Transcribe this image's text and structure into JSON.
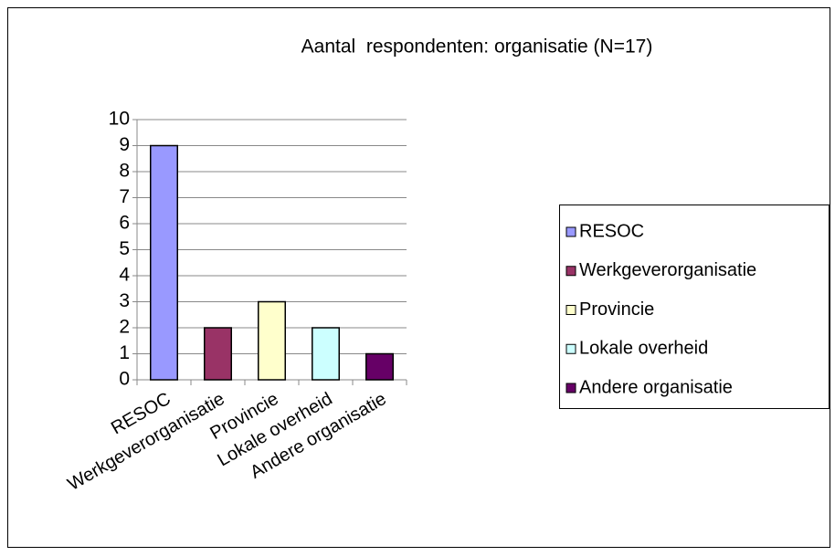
{
  "chart_data": {
    "type": "bar",
    "title": "Aantal  respondenten: organisatie (N=17)",
    "categories": [
      "RESOC",
      "Werkgeverorganisatie",
      "Provincie",
      "Lokale overheid",
      "Andere organisatie"
    ],
    "values": [
      9,
      2,
      3,
      2,
      1
    ],
    "colors": [
      "#9999ff",
      "#993366",
      "#ffffcc",
      "#ccffff",
      "#660066"
    ],
    "ylim": [
      0,
      10
    ],
    "yticks": [
      0,
      1,
      2,
      3,
      4,
      5,
      6,
      7,
      8,
      9,
      10
    ],
    "grid": true,
    "legend": "right"
  }
}
